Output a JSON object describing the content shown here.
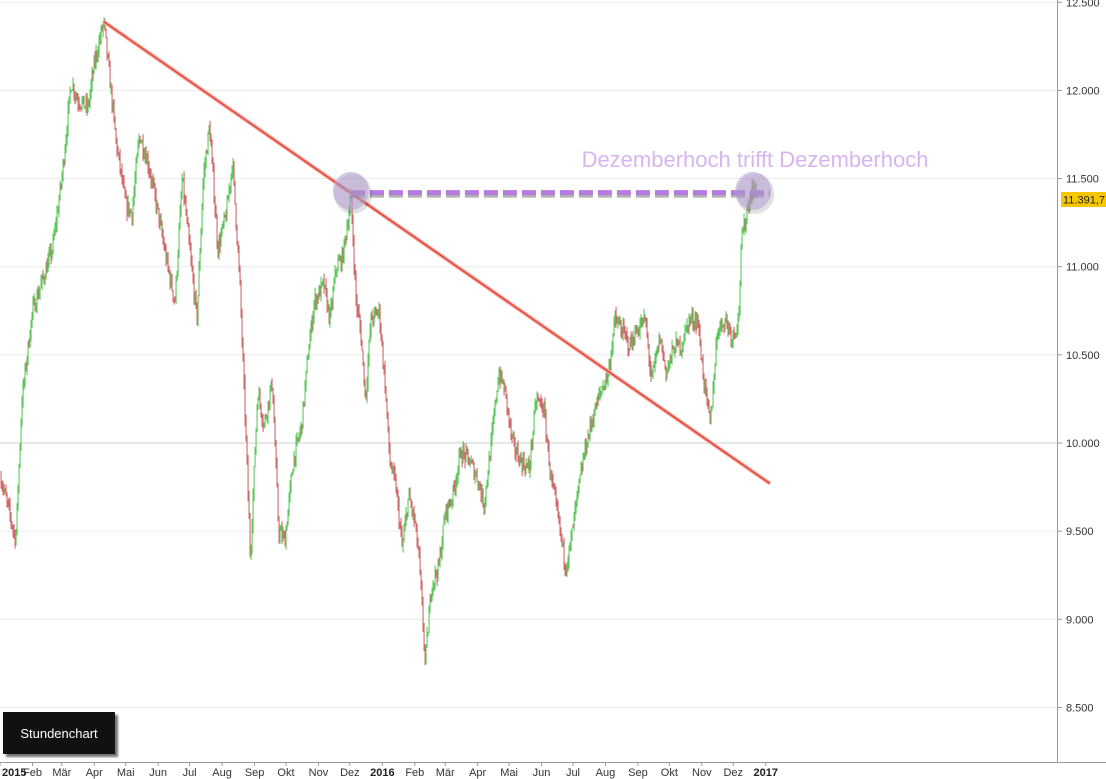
{
  "chart_data": {
    "type": "candlestick",
    "timeframe_label": "Stundenchart",
    "annotation": "Dezemberhoch trifft Dezemberhoch",
    "y_axis": {
      "ylim": [
        8250,
        12500
      ],
      "ticks": [
        "8.500",
        "9.000",
        "9.500",
        "10.000",
        "10.500",
        "11.000",
        "11.500",
        "12.000",
        "12.500"
      ],
      "tick_values": [
        8500,
        9000,
        9500,
        10000,
        10500,
        11000,
        11500,
        12000,
        12500
      ]
    },
    "x_axis": {
      "labels": [
        "2015",
        "Feb",
        "Mär",
        "Apr",
        "Mai",
        "Jun",
        "Jul",
        "Aug",
        "Sep",
        "Okt",
        "Nov",
        "Dez",
        "2016",
        "Feb",
        "Mär",
        "Apr",
        "Mai",
        "Jun",
        "Jul",
        "Aug",
        "Sep",
        "Okt",
        "Nov",
        "Dez",
        "2017"
      ],
      "bold_labels": [
        "2015",
        "2016",
        "2017"
      ]
    },
    "last_price": "11.391,7",
    "last_price_value": 11391.7,
    "grid": true,
    "colors": {
      "up": "#5cc85c",
      "down": "#d06a6a",
      "trendline": "#e8473b",
      "resistance": "#b57be0",
      "marker": "#b9a3d6",
      "price_tag": "#f6c600"
    },
    "series": [
      {
        "role": "price",
        "path": [
          [
            "2015-01-02",
            9800
          ],
          [
            "2015-01-10",
            9600
          ],
          [
            "2015-01-16",
            9450
          ],
          [
            "2015-01-22",
            10250
          ],
          [
            "2015-02-01",
            10750
          ],
          [
            "2015-02-12",
            10950
          ],
          [
            "2015-02-20",
            11100
          ],
          [
            "2015-03-01",
            11500
          ],
          [
            "2015-03-10",
            12050
          ],
          [
            "2015-03-16",
            11950
          ],
          [
            "2015-03-26",
            11900
          ],
          [
            "2015-04-01",
            12150
          ],
          [
            "2015-04-10",
            12390
          ],
          [
            "2015-04-16",
            12050
          ],
          [
            "2015-04-22",
            11700
          ],
          [
            "2015-05-01",
            11350
          ],
          [
            "2015-05-07",
            11300
          ],
          [
            "2015-05-14",
            11750
          ],
          [
            "2015-05-22",
            11600
          ],
          [
            "2015-06-01",
            11300
          ],
          [
            "2015-06-10",
            11000
          ],
          [
            "2015-06-17",
            10800
          ],
          [
            "2015-06-24",
            11500
          ],
          [
            "2015-07-01",
            11100
          ],
          [
            "2015-07-08",
            10700
          ],
          [
            "2015-07-14",
            11500
          ],
          [
            "2015-07-20",
            11800
          ],
          [
            "2015-07-28",
            11100
          ],
          [
            "2015-08-05",
            11300
          ],
          [
            "2015-08-11",
            11600
          ],
          [
            "2015-08-18",
            10900
          ],
          [
            "2015-08-24",
            10000
          ],
          [
            "2015-08-28",
            9350
          ],
          [
            "2015-09-04",
            10300
          ],
          [
            "2015-09-10",
            10100
          ],
          [
            "2015-09-18",
            10350
          ],
          [
            "2015-09-24",
            9500
          ],
          [
            "2015-09-30",
            9450
          ],
          [
            "2015-10-08",
            9900
          ],
          [
            "2015-10-16",
            10100
          ],
          [
            "2015-10-22",
            10500
          ],
          [
            "2015-10-28",
            10800
          ],
          [
            "2015-11-06",
            10900
          ],
          [
            "2015-11-12",
            10700
          ],
          [
            "2015-11-18",
            11000
          ],
          [
            "2015-11-24",
            11050
          ],
          [
            "2015-12-02",
            11390
          ],
          [
            "2015-12-07",
            10800
          ],
          [
            "2015-12-11",
            10650
          ],
          [
            "2015-12-16",
            10250
          ],
          [
            "2015-12-21",
            10700
          ],
          [
            "2015-12-29",
            10750
          ],
          [
            "2016-01-04",
            10300
          ],
          [
            "2016-01-08",
            9900
          ],
          [
            "2016-01-14",
            9750
          ],
          [
            "2016-01-20",
            9400
          ],
          [
            "2016-01-26",
            9700
          ],
          [
            "2016-02-01",
            9550
          ],
          [
            "2016-02-05",
            9350
          ],
          [
            "2016-02-11",
            8750
          ],
          [
            "2016-02-17",
            9200
          ],
          [
            "2016-02-24",
            9300
          ],
          [
            "2016-03-01",
            9600
          ],
          [
            "2016-03-08",
            9700
          ],
          [
            "2016-03-16",
            9950
          ],
          [
            "2016-03-24",
            9900
          ],
          [
            "2016-04-01",
            9800
          ],
          [
            "2016-04-07",
            9650
          ],
          [
            "2016-04-14",
            10000
          ],
          [
            "2016-04-21",
            10400
          ],
          [
            "2016-04-27",
            10300
          ],
          [
            "2016-05-04",
            10000
          ],
          [
            "2016-05-12",
            9900
          ],
          [
            "2016-05-20",
            9850
          ],
          [
            "2016-05-27",
            10250
          ],
          [
            "2016-06-03",
            10200
          ],
          [
            "2016-06-10",
            9800
          ],
          [
            "2016-06-16",
            9600
          ],
          [
            "2016-06-24",
            9300
          ],
          [
            "2016-06-28",
            9400
          ],
          [
            "2016-07-04",
            9650
          ],
          [
            "2016-07-12",
            9950
          ],
          [
            "2016-07-20",
            10150
          ],
          [
            "2016-07-28",
            10300
          ],
          [
            "2016-08-04",
            10400
          ],
          [
            "2016-08-10",
            10700
          ],
          [
            "2016-08-16",
            10650
          ],
          [
            "2016-08-24",
            10550
          ],
          [
            "2016-09-01",
            10650
          ],
          [
            "2016-09-08",
            10700
          ],
          [
            "2016-09-14",
            10350
          ],
          [
            "2016-09-22",
            10600
          ],
          [
            "2016-09-28",
            10400
          ],
          [
            "2016-10-06",
            10550
          ],
          [
            "2016-10-12",
            10550
          ],
          [
            "2016-10-20",
            10700
          ],
          [
            "2016-10-28",
            10700
          ],
          [
            "2016-11-03",
            10350
          ],
          [
            "2016-11-09",
            10100
          ],
          [
            "2016-11-16",
            10650
          ],
          [
            "2016-11-24",
            10700
          ],
          [
            "2016-11-30",
            10600
          ],
          [
            "2016-12-06",
            10700
          ],
          [
            "2016-12-09",
            11150
          ],
          [
            "2016-12-15",
            11350
          ],
          [
            "2016-12-20",
            11450
          ],
          [
            "2016-12-23",
            11420
          ]
        ]
      },
      {
        "role": "trendline",
        "points": [
          [
            "2015-04-10",
            12390
          ],
          [
            "2017-01-05",
            9770
          ]
        ]
      },
      {
        "role": "resistance",
        "level": 11420,
        "from": "2015-12-02",
        "to": "2017-01-05"
      }
    ],
    "markers": [
      {
        "date": "2015-12-02",
        "value": 11430
      },
      {
        "date": "2016-12-20",
        "value": 11430
      }
    ]
  }
}
